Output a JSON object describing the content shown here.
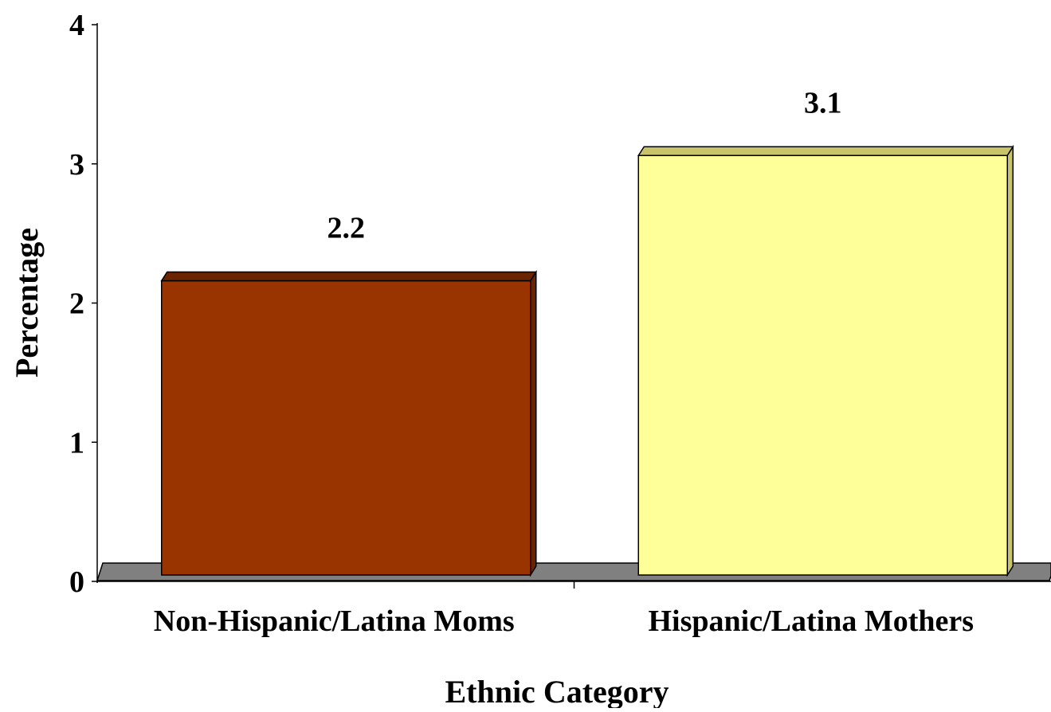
{
  "chart_data": {
    "type": "bar",
    "style": "3d",
    "categories": [
      "Non-Hispanic/Latina Moms",
      "Hispanic/Latina Mothers"
    ],
    "values": [
      2.2,
      3.1
    ],
    "data_labels": [
      "2.2",
      "3.1"
    ],
    "title": "",
    "xlabel": "Ethnic Category",
    "ylabel": "Percentage",
    "ylim": [
      0,
      4
    ],
    "yticks": [
      "0",
      "1",
      "2",
      "3",
      "4"
    ],
    "grid": false,
    "legend": "none",
    "colors": {
      "bars": [
        "#993300",
        "#FFFF99"
      ],
      "bar_sides": [
        "#6b2400",
        "#C9C46A"
      ],
      "floor": "#808080",
      "axis": "#000000"
    }
  }
}
